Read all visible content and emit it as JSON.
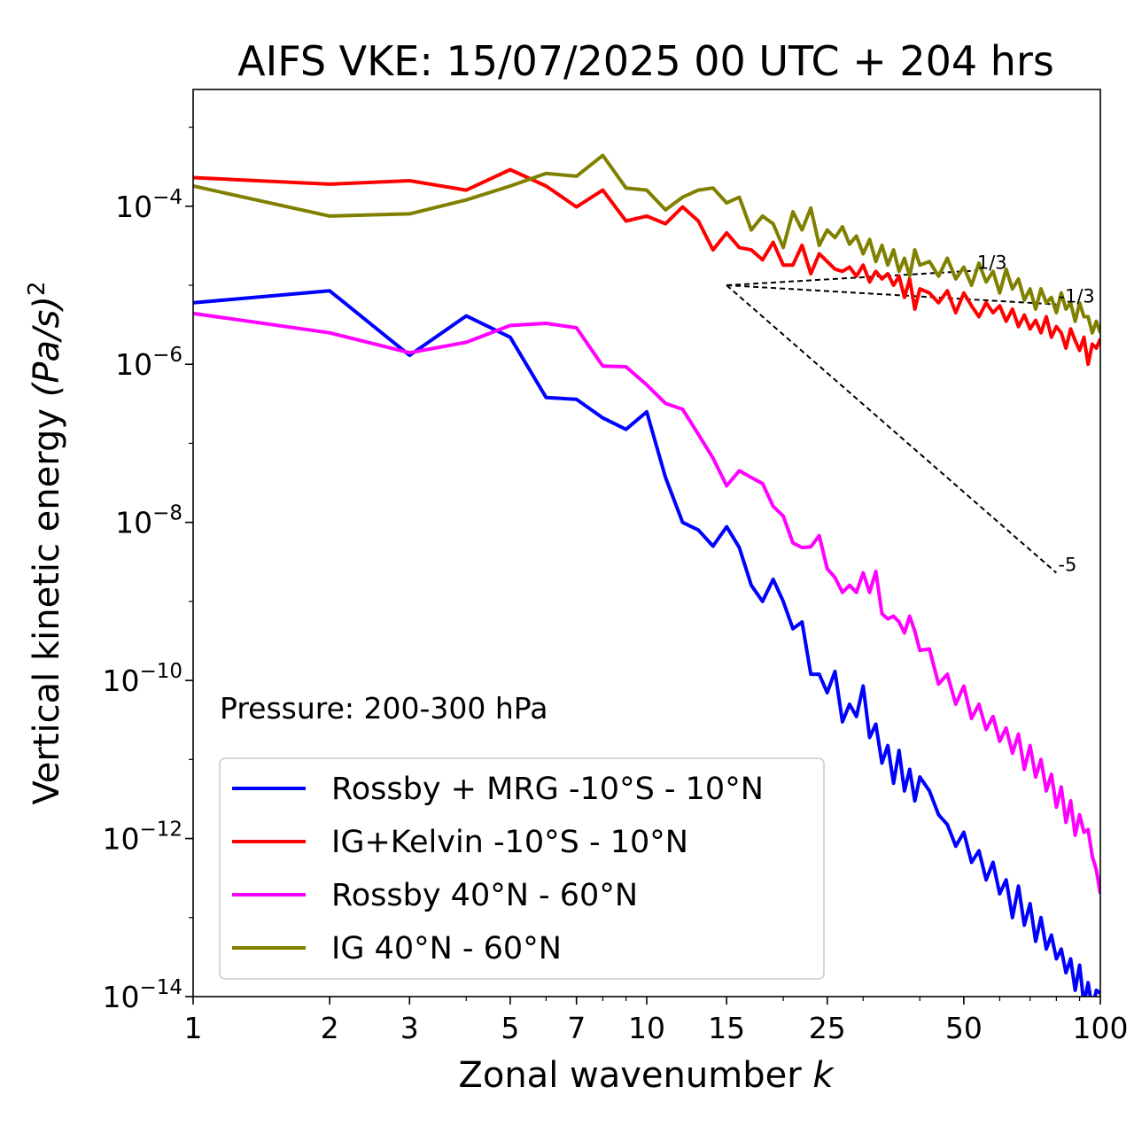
{
  "chart_data": {
    "type": "line",
    "title": "AIFS VKE: 15/07/2025 00 UTC + 204 hrs",
    "xlabel": "Zonal wavenumber",
    "xlabel_var": "k",
    "ylabel": "Vertical kinetic energy",
    "ylabel_unit": "(Pa/s)",
    "ylabel_exp": "2",
    "x_scale": "log",
    "y_scale": "log",
    "xlim": [
      1,
      100
    ],
    "ylim": [
      1e-14,
      0.003
    ],
    "x_ticks": [
      1,
      2,
      3,
      5,
      7,
      10,
      15,
      25,
      50,
      100
    ],
    "x_tick_labels": [
      "1",
      "2",
      "3",
      "5",
      "7",
      "10",
      "15",
      "25",
      "50",
      "100"
    ],
    "y_ticks": [
      0.0001,
      1e-06,
      1e-08,
      1e-10,
      1e-12,
      1e-14
    ],
    "y_tick_labels": [
      {
        "base": "10",
        "exp": "−4"
      },
      {
        "base": "10",
        "exp": "−6"
      },
      {
        "base": "10",
        "exp": "−8"
      },
      {
        "base": "10",
        "exp": "−10"
      },
      {
        "base": "10",
        "exp": "−12"
      },
      {
        "base": "10",
        "exp": "−14"
      }
    ],
    "grid": false,
    "legend_position": "lower-left",
    "annotation": "Pressure: 200-300 hPa",
    "series": [
      {
        "name": "Rossby + MRG -10°S - 10°N",
        "color": "#0000ff",
        "x": [
          1,
          2,
          3,
          4,
          5,
          6,
          7,
          8,
          9,
          10,
          11,
          12,
          13,
          14,
          15,
          16,
          17,
          18,
          19,
          20,
          21,
          22,
          23,
          24,
          25,
          26,
          27,
          28,
          29,
          30,
          31,
          32,
          33,
          34,
          35,
          36,
          37,
          38,
          39,
          40,
          42,
          44,
          46,
          48,
          50,
          52,
          54,
          56,
          58,
          60,
          62,
          64,
          66,
          68,
          70,
          72,
          74,
          76,
          78,
          80,
          82,
          84,
          86,
          88,
          90,
          92,
          94,
          96,
          98,
          100
        ],
        "y": [
          6e-06,
          8.5e-06,
          1.3e-06,
          4.1e-06,
          2.2e-06,
          3.8e-07,
          3.6e-07,
          2.1e-07,
          1.5e-07,
          2.5e-07,
          3.7e-08,
          1e-08,
          8e-09,
          5e-09,
          8.8e-09,
          4.8e-09,
          1.6e-09,
          1e-09,
          1.9e-09,
          1e-09,
          4.5e-10,
          5.5e-10,
          1.2e-10,
          1.2e-10,
          7e-11,
          1.3e-10,
          3e-11,
          5e-11,
          3.5e-11,
          8.5e-11,
          1.9e-11,
          2.8e-11,
          9e-12,
          1.5e-11,
          5e-12,
          1.3e-11,
          4e-12,
          7.5e-12,
          3e-12,
          6e-12,
          4e-12,
          2e-12,
          1.5e-12,
          8e-13,
          1.2e-12,
          5e-13,
          7e-13,
          3e-13,
          5e-13,
          2e-13,
          3e-13,
          1e-13,
          2.5e-13,
          8e-14,
          1.5e-13,
          5e-14,
          1e-13,
          4e-14,
          6e-14,
          3e-14,
          4e-14,
          2e-14,
          3e-14,
          1.2e-14,
          2.5e-14,
          8e-15,
          1.5e-14,
          7e-15,
          1.2e-14,
          1.1e-14
        ]
      },
      {
        "name": "IG+Kelvin -10°S - 10°N",
        "color": "#ff0000",
        "x": [
          1,
          2,
          3,
          4,
          5,
          6,
          7,
          8,
          9,
          10,
          11,
          12,
          13,
          14,
          15,
          16,
          17,
          18,
          19,
          20,
          21,
          22,
          23,
          24,
          25,
          26,
          27,
          28,
          29,
          30,
          31,
          32,
          33,
          34,
          35,
          36,
          37,
          38,
          39,
          40,
          42,
          44,
          46,
          48,
          50,
          52,
          54,
          56,
          58,
          60,
          62,
          64,
          66,
          68,
          70,
          72,
          74,
          76,
          78,
          80,
          82,
          84,
          86,
          88,
          90,
          92,
          94,
          96,
          98,
          100
        ],
        "y": [
          0.00023,
          0.00019,
          0.00021,
          0.00016,
          0.00029,
          0.00018,
          9.8e-05,
          0.00016,
          6.5e-05,
          7.5e-05,
          6e-05,
          9.8e-05,
          6.5e-05,
          2.8e-05,
          4.6e-05,
          3e-05,
          2.8e-05,
          2.1e-05,
          3.5e-05,
          1.8e-05,
          1.8e-05,
          3.2e-05,
          1.4e-05,
          2.5e-05,
          2e-05,
          1.6e-05,
          1.5e-05,
          1.7e-05,
          1.3e-05,
          1.8e-05,
          1.1e-05,
          1.5e-05,
          1.2e-05,
          1.4e-05,
          1e-05,
          1.3e-05,
          7e-06,
          1.2e-05,
          5e-06,
          9e-06,
          8e-06,
          6e-06,
          8.5e-06,
          4.5e-06,
          8e-06,
          5.5e-06,
          4e-06,
          6e-06,
          4.5e-06,
          5.5e-06,
          3.5e-06,
          5e-06,
          3e-06,
          4.2e-06,
          2.8e-06,
          3.6e-06,
          2.5e-06,
          4e-06,
          2.2e-06,
          3e-06,
          2.5e-06,
          1.6e-06,
          2.8e-06,
          2e-06,
          1.5e-06,
          2.2e-06,
          1e-06,
          1.8e-06,
          1.6e-06,
          2.1e-06
        ]
      },
      {
        "name": "Rossby 40°N - 60°N",
        "color": "#ff00ff",
        "x": [
          1,
          2,
          3,
          4,
          5,
          6,
          7,
          8,
          9,
          10,
          11,
          12,
          13,
          14,
          15,
          16,
          17,
          18,
          19,
          20,
          21,
          22,
          23,
          24,
          25,
          26,
          27,
          28,
          29,
          30,
          31,
          32,
          33,
          34,
          35,
          36,
          37,
          38,
          39,
          40,
          42,
          44,
          46,
          48,
          50,
          52,
          54,
          56,
          58,
          60,
          62,
          64,
          66,
          68,
          70,
          72,
          74,
          76,
          78,
          80,
          82,
          84,
          86,
          88,
          90,
          92,
          94,
          96,
          98,
          100
        ],
        "y": [
          4.4e-06,
          2.5e-06,
          1.4e-06,
          1.9e-06,
          3.1e-06,
          3.3e-06,
          2.9e-06,
          9.5e-07,
          9.3e-07,
          5.5e-07,
          3.2e-07,
          2.7e-07,
          1.3e-07,
          6.5e-08,
          2.9e-08,
          4.5e-08,
          3.7e-08,
          3.1e-08,
          1.6e-08,
          1.2e-08,
          5.5e-09,
          4.8e-09,
          4.9e-09,
          6.8e-09,
          2.6e-09,
          2e-09,
          1.3e-09,
          1.6e-09,
          1.3e-09,
          2.3e-09,
          1.3e-09,
          2.4e-09,
          7e-10,
          6e-10,
          6.5e-10,
          5.5e-10,
          4e-10,
          6.5e-10,
          4.2e-10,
          2.4e-10,
          2.5e-10,
          9e-11,
          1.2e-10,
          5e-11,
          8.5e-11,
          3.3e-11,
          5e-11,
          2.4e-11,
          3.5e-11,
          1.7e-11,
          2.5e-11,
          1.2e-11,
          2.1e-11,
          7.5e-12,
          1.5e-11,
          6e-12,
          1e-11,
          4e-12,
          6.5e-12,
          2.5e-12,
          4.5e-12,
          1.6e-12,
          3e-12,
          1.1e-12,
          2e-12,
          1.2e-12,
          1.3e-12,
          6e-13,
          4e-13,
          2e-13
        ]
      },
      {
        "name": "IG 40°N - 60°N",
        "color": "#808000",
        "x": [
          1,
          2,
          3,
          4,
          5,
          6,
          7,
          8,
          9,
          10,
          11,
          12,
          13,
          14,
          15,
          16,
          17,
          18,
          19,
          20,
          21,
          22,
          23,
          24,
          25,
          26,
          27,
          28,
          29,
          30,
          31,
          32,
          33,
          34,
          35,
          36,
          37,
          38,
          39,
          40,
          42,
          44,
          46,
          48,
          50,
          52,
          54,
          56,
          58,
          60,
          62,
          64,
          66,
          68,
          70,
          72,
          74,
          76,
          78,
          80,
          82,
          84,
          86,
          88,
          90,
          92,
          94,
          96,
          98,
          100
        ],
        "y": [
          0.00018,
          7.5e-05,
          8e-05,
          0.00012,
          0.00018,
          0.00026,
          0.00024,
          0.00044,
          0.00017,
          0.00016,
          9e-05,
          0.00013,
          0.00016,
          0.00017,
          0.00011,
          0.00013,
          5e-05,
          7.5e-05,
          6e-05,
          3e-05,
          8.5e-05,
          5e-05,
          9.5e-05,
          3.2e-05,
          5e-05,
          4e-05,
          5.5e-05,
          3.3e-05,
          4.2e-05,
          2.5e-05,
          3.8e-05,
          2e-05,
          3.2e-05,
          1.8e-05,
          2.8e-05,
          1.5e-05,
          2.2e-05,
          1.3e-05,
          2.8e-05,
          1.8e-05,
          2e-05,
          1.3e-05,
          2.2e-05,
          1.2e-05,
          1.7e-05,
          1e-05,
          1.9e-05,
          1.1e-05,
          1.5e-05,
          8e-06,
          1.6e-05,
          9e-06,
          1.2e-05,
          6.5e-06,
          9e-06,
          5e-06,
          9e-06,
          6e-06,
          7e-06,
          4.5e-06,
          8e-06,
          5e-06,
          6e-06,
          3.5e-06,
          6e-06,
          4e-06,
          4e-06,
          2.5e-06,
          3.5e-06,
          2.5e-06
        ]
      }
    ],
    "reference_lines": [
      {
        "label": "1/3",
        "x": [
          15,
          53
        ],
        "y": [
          1e-05,
          1.53e-05
        ]
      },
      {
        "label": "-1/3",
        "x": [
          15,
          80
        ],
        "y": [
          1e-05,
          5.73e-06
        ]
      },
      {
        "label": "-5",
        "x": [
          15,
          80
        ],
        "y": [
          1e-05,
          2.3e-09
        ]
      }
    ]
  }
}
